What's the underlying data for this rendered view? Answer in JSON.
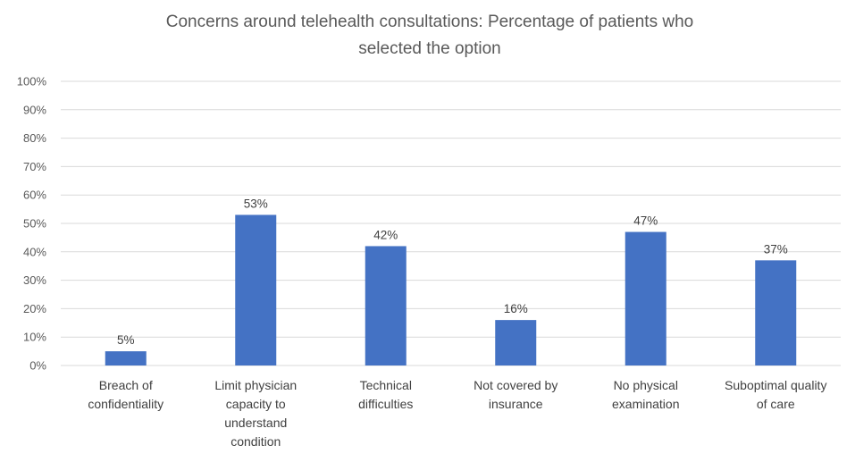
{
  "chart_data": {
    "type": "bar",
    "title": [
      "Concerns around telehealth consultations: Percentage of patients who",
      "selected the option"
    ],
    "categories": [
      [
        "Breach of",
        "confidentiality"
      ],
      [
        "Limit physician",
        "capacity to",
        "understand",
        "condition"
      ],
      [
        "Technical",
        "difficulties"
      ],
      [
        "Not covered by",
        "insurance"
      ],
      [
        "No physical",
        "examination"
      ],
      [
        "Suboptimal quality",
        "of care"
      ]
    ],
    "values": [
      5,
      53,
      42,
      16,
      47,
      37
    ],
    "data_labels": [
      "5%",
      "53%",
      "42%",
      "16%",
      "47%",
      "37%"
    ],
    "y_ticks": [
      "0%",
      "10%",
      "20%",
      "30%",
      "40%",
      "50%",
      "60%",
      "70%",
      "80%",
      "90%",
      "100%"
    ],
    "ylim": [
      0,
      100
    ],
    "xlabel": "",
    "ylabel": "",
    "grid": true,
    "legend": "none",
    "bar_color": "#4472c4"
  }
}
